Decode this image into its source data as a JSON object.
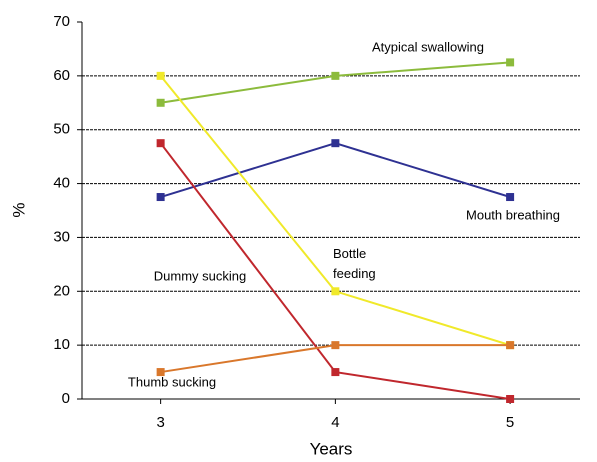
{
  "chart_data": {
    "type": "line",
    "x_label": "Years",
    "y_label": "%",
    "x": [
      3,
      4,
      5
    ],
    "xlim": [
      2.55,
      5.4
    ],
    "xticks": [
      3,
      4,
      5
    ],
    "ylim": [
      0,
      70
    ],
    "yticks": [
      0,
      10,
      20,
      30,
      40,
      50,
      60,
      70
    ],
    "grid": true,
    "series": [
      {
        "name": "Atypical swallowing",
        "color": "#8cbb3c",
        "values": [
          55,
          60,
          62.5
        ]
      },
      {
        "name": "Mouth breathing",
        "color": "#2e3192",
        "values": [
          37.5,
          47.5,
          37.5
        ]
      },
      {
        "name": "Bottle feeding",
        "color": "#f0e92a",
        "values": [
          60,
          20,
          10
        ]
      },
      {
        "name": "Dummy sucking",
        "color": "#c0272d",
        "values": [
          47.5,
          5,
          0
        ]
      },
      {
        "name": "Thumb sucking",
        "color": "#d9772b",
        "values": [
          5,
          10,
          10
        ]
      }
    ]
  }
}
